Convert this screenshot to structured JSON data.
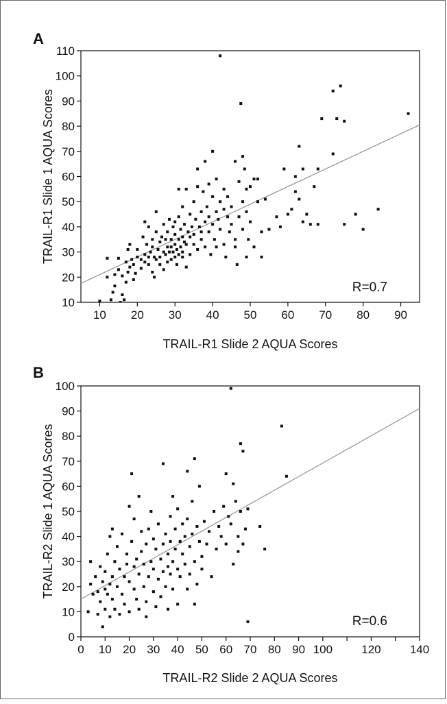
{
  "chart_data": [
    {
      "type": "scatter",
      "panel_label": "A",
      "xlabel": "TRAIL-R1 Slide 2 AQUA Scores",
      "ylabel": "TRAIL-R1 Slide 1 AQUA Scores",
      "annotation": "R=0.7",
      "xlim": [
        5,
        95
      ],
      "ylim": [
        10,
        110
      ],
      "x_ticks": [
        10,
        20,
        30,
        40,
        50,
        60,
        70,
        80,
        90
      ],
      "y_ticks": [
        10,
        20,
        30,
        40,
        50,
        60,
        70,
        80,
        90,
        100,
        110
      ],
      "grid": false,
      "fit_line": {
        "x": [
          5,
          95
        ],
        "y": [
          17.5,
          80.5
        ]
      },
      "point_color": "#111111",
      "line_color": "#999999",
      "points": [
        [
          10,
          10.5
        ],
        [
          12,
          20
        ],
        [
          12,
          27.5
        ],
        [
          13,
          11
        ],
        [
          13.5,
          14
        ],
        [
          14,
          16.5
        ],
        [
          14,
          21
        ],
        [
          15,
          27.5
        ],
        [
          15,
          23
        ],
        [
          15.5,
          10
        ],
        [
          16,
          13
        ],
        [
          16,
          20.5
        ],
        [
          16.5,
          11
        ],
        [
          17,
          26
        ],
        [
          17,
          18
        ],
        [
          17.5,
          31
        ],
        [
          17.5,
          22
        ],
        [
          18,
          33
        ],
        [
          18,
          24
        ],
        [
          18.5,
          27
        ],
        [
          19,
          25
        ],
        [
          19,
          19
        ],
        [
          19.5,
          21.5
        ],
        [
          20,
          28
        ],
        [
          20,
          31
        ],
        [
          21,
          27
        ],
        [
          21,
          23.5
        ],
        [
          21.5,
          36
        ],
        [
          22,
          26
        ],
        [
          22,
          42
        ],
        [
          22,
          29
        ],
        [
          22.5,
          33
        ],
        [
          23,
          28
        ],
        [
          23,
          25
        ],
        [
          23,
          40
        ],
        [
          23.5,
          30
        ],
        [
          24,
          32
        ],
        [
          24,
          22
        ],
        [
          24,
          35
        ],
        [
          24.5,
          28
        ],
        [
          24.5,
          20
        ],
        [
          25,
          27
        ],
        [
          25,
          46
        ],
        [
          25,
          38
        ],
        [
          25.5,
          31
        ],
        [
          26,
          28
        ],
        [
          26,
          25
        ],
        [
          26,
          34
        ],
        [
          26.5,
          36
        ],
        [
          27,
          30
        ],
        [
          27,
          41
        ],
        [
          27,
          23
        ],
        [
          27.5,
          29
        ],
        [
          27.5,
          35
        ],
        [
          28,
          32
        ],
        [
          28,
          26
        ],
        [
          28,
          38
        ],
        [
          28.5,
          30
        ],
        [
          28.5,
          43
        ],
        [
          29,
          32
        ],
        [
          29,
          27
        ],
        [
          29,
          35
        ],
        [
          29.5,
          30
        ],
        [
          29.5,
          40
        ],
        [
          30,
          33
        ],
        [
          30,
          28
        ],
        [
          30,
          37
        ],
        [
          30,
          42
        ],
        [
          30.5,
          31
        ],
        [
          30.5,
          25
        ],
        [
          31,
          35
        ],
        [
          31,
          29
        ],
        [
          31,
          44
        ],
        [
          31,
          55
        ],
        [
          31.5,
          32
        ],
        [
          31.5,
          39
        ],
        [
          32,
          30
        ],
        [
          32,
          36
        ],
        [
          32,
          28
        ],
        [
          32,
          48
        ],
        [
          32.5,
          34
        ],
        [
          32.5,
          41
        ],
        [
          33,
          33
        ],
        [
          33,
          24
        ],
        [
          33,
          55
        ],
        [
          33.5,
          38
        ],
        [
          34,
          36
        ],
        [
          34,
          29
        ],
        [
          34,
          45
        ],
        [
          34.5,
          40
        ],
        [
          35,
          33
        ],
        [
          35,
          50
        ],
        [
          35,
          37
        ],
        [
          35.5,
          43
        ],
        [
          36,
          31
        ],
        [
          36,
          56
        ],
        [
          36,
          63
        ],
        [
          36.5,
          40
        ],
        [
          37,
          38
        ],
        [
          37,
          46
        ],
        [
          37,
          35
        ],
        [
          37.5,
          54
        ],
        [
          38,
          42
        ],
        [
          38,
          32
        ],
        [
          38,
          66
        ],
        [
          38.5,
          48
        ],
        [
          39,
          38
        ],
        [
          39,
          57
        ],
        [
          39,
          44
        ],
        [
          39.5,
          29
        ],
        [
          40,
          70
        ],
        [
          40,
          52
        ],
        [
          40,
          41
        ],
        [
          40.5,
          35
        ],
        [
          41,
          46
        ],
        [
          41,
          59
        ],
        [
          41,
          32
        ],
        [
          41.5,
          43
        ],
        [
          42,
          108
        ],
        [
          42,
          50
        ],
        [
          42,
          39
        ],
        [
          43,
          55
        ],
        [
          43,
          47
        ],
        [
          43,
          33
        ],
        [
          43.5,
          28
        ],
        [
          44,
          44
        ],
        [
          44,
          52
        ],
        [
          44.5,
          38
        ],
        [
          45,
          48
        ],
        [
          45,
          41
        ],
        [
          46,
          66
        ],
        [
          46,
          35
        ],
        [
          46,
          32
        ],
        [
          46.5,
          25
        ],
        [
          47,
          44
        ],
        [
          47,
          58
        ],
        [
          47.5,
          89
        ],
        [
          48,
          68
        ],
        [
          48,
          50
        ],
        [
          48,
          39
        ],
        [
          48.5,
          63
        ],
        [
          49,
          55
        ],
        [
          49,
          46
        ],
        [
          49,
          28
        ],
        [
          49.5,
          35
        ],
        [
          50,
          56
        ],
        [
          50,
          42
        ],
        [
          51,
          59
        ],
        [
          51,
          32
        ],
        [
          52,
          59
        ],
        [
          52,
          50
        ],
        [
          53,
          38
        ],
        [
          53,
          28
        ],
        [
          54,
          51
        ],
        [
          55,
          39
        ],
        [
          57,
          44
        ],
        [
          58,
          40
        ],
        [
          59,
          63
        ],
        [
          60,
          45
        ],
        [
          61,
          47
        ],
        [
          62,
          60
        ],
        [
          62,
          54
        ],
        [
          63,
          72
        ],
        [
          63,
          51
        ],
        [
          64,
          63
        ],
        [
          64,
          42
        ],
        [
          65,
          45
        ],
        [
          66,
          41
        ],
        [
          67,
          56
        ],
        [
          68,
          41
        ],
        [
          68,
          63
        ],
        [
          69,
          83
        ],
        [
          72,
          69
        ],
        [
          72,
          94
        ],
        [
          73,
          83
        ],
        [
          74,
          96
        ],
        [
          75,
          41
        ],
        [
          75,
          82
        ],
        [
          78,
          45
        ],
        [
          80,
          39
        ],
        [
          84,
          47
        ],
        [
          92,
          85
        ]
      ]
    },
    {
      "type": "scatter",
      "panel_label": "B",
      "xlabel": "TRAIL-R2 Slide 2 AQUA Scores",
      "ylabel": "TRAIL-R2 Slide 1 AQUA Scores",
      "annotation": "R=0.6",
      "xlim": [
        0,
        140
      ],
      "ylim": [
        0,
        100
      ],
      "x_ticks": [
        0,
        10,
        20,
        30,
        40,
        50,
        60,
        70,
        80,
        90,
        100,
        120,
        140
      ],
      "y_ticks": [
        0,
        10,
        20,
        30,
        40,
        50,
        60,
        70,
        80,
        90,
        100
      ],
      "grid": false,
      "fit_line": {
        "x": [
          0,
          140
        ],
        "y": [
          15,
          91
        ]
      },
      "point_color": "#111111",
      "line_color": "#999999",
      "points": [
        [
          3,
          10
        ],
        [
          4,
          21
        ],
        [
          4,
          30
        ],
        [
          5,
          17
        ],
        [
          6,
          24
        ],
        [
          7,
          18
        ],
        [
          7,
          9
        ],
        [
          8,
          28
        ],
        [
          8,
          14
        ],
        [
          9,
          4
        ],
        [
          9,
          22
        ],
        [
          10,
          11
        ],
        [
          10,
          19
        ],
        [
          10,
          26
        ],
        [
          11,
          17
        ],
        [
          11,
          33
        ],
        [
          12,
          40
        ],
        [
          12,
          21
        ],
        [
          12,
          8
        ],
        [
          13,
          43
        ],
        [
          13,
          24
        ],
        [
          13,
          15
        ],
        [
          14,
          11
        ],
        [
          14,
          30
        ],
        [
          15,
          20
        ],
        [
          15,
          36
        ],
        [
          16,
          27
        ],
        [
          16,
          9
        ],
        [
          17,
          17
        ],
        [
          17,
          41
        ],
        [
          18,
          24
        ],
        [
          18,
          13
        ],
        [
          19,
          29
        ],
        [
          19,
          33
        ],
        [
          20,
          52
        ],
        [
          20,
          10
        ],
        [
          20,
          22
        ],
        [
          21,
          38
        ],
        [
          21,
          65
        ],
        [
          22,
          19
        ],
        [
          22,
          28
        ],
        [
          22,
          47
        ],
        [
          23,
          15
        ],
        [
          23,
          31
        ],
        [
          24,
          56
        ],
        [
          24,
          11
        ],
        [
          24,
          25
        ],
        [
          25,
          42
        ],
        [
          25,
          34
        ],
        [
          26,
          20
        ],
        [
          26,
          29
        ],
        [
          27,
          8
        ],
        [
          27,
          37
        ],
        [
          27,
          14
        ],
        [
          28,
          43
        ],
        [
          28,
          24
        ],
        [
          29,
          30
        ],
        [
          29,
          50
        ],
        [
          30,
          18
        ],
        [
          30,
          39
        ],
        [
          30,
          27
        ],
        [
          31,
          35
        ],
        [
          31,
          12
        ],
        [
          32,
          45
        ],
        [
          32,
          23
        ],
        [
          33,
          31
        ],
        [
          33,
          16
        ],
        [
          34,
          69
        ],
        [
          34,
          37
        ],
        [
          34,
          26
        ],
        [
          35,
          41
        ],
        [
          35,
          20
        ],
        [
          36,
          28
        ],
        [
          36,
          33
        ],
        [
          36,
          11
        ],
        [
          37,
          48
        ],
        [
          37,
          25
        ],
        [
          37,
          38
        ],
        [
          38,
          56
        ],
        [
          38,
          30
        ],
        [
          38,
          19
        ],
        [
          39,
          43
        ],
        [
          39,
          35
        ],
        [
          40,
          27
        ],
        [
          40,
          51
        ],
        [
          40,
          13
        ],
        [
          41,
          38
        ],
        [
          41,
          24
        ],
        [
          42,
          45
        ],
        [
          42,
          33
        ],
        [
          43,
          29
        ],
        [
          43,
          40
        ],
        [
          44,
          19
        ],
        [
          44,
          66
        ],
        [
          44,
          47
        ],
        [
          45,
          36
        ],
        [
          45,
          25
        ],
        [
          46,
          54
        ],
        [
          46,
          41
        ],
        [
          47,
          30
        ],
        [
          47,
          71
        ],
        [
          47,
          13
        ],
        [
          48,
          44
        ],
        [
          48,
          21
        ],
        [
          49,
          38
        ],
        [
          49,
          60
        ],
        [
          50,
          32
        ],
        [
          50,
          27
        ],
        [
          51,
          46
        ],
        [
          52,
          37
        ],
        [
          53,
          42
        ],
        [
          54,
          24
        ],
        [
          55,
          50
        ],
        [
          56,
          35
        ],
        [
          57,
          44
        ],
        [
          58,
          40
        ],
        [
          59,
          52
        ],
        [
          60,
          65
        ],
        [
          60,
          37
        ],
        [
          61,
          48
        ],
        [
          62,
          99
        ],
        [
          62,
          45
        ],
        [
          63,
          29
        ],
        [
          63,
          61
        ],
        [
          64,
          54
        ],
        [
          65,
          40
        ],
        [
          65,
          34
        ],
        [
          66,
          77
        ],
        [
          66,
          50
        ],
        [
          67,
          74
        ],
        [
          67,
          37
        ],
        [
          68,
          43
        ],
        [
          69,
          6
        ],
        [
          69,
          51
        ],
        [
          74,
          44
        ],
        [
          76,
          35
        ],
        [
          83,
          84
        ],
        [
          85,
          64
        ]
      ]
    }
  ]
}
